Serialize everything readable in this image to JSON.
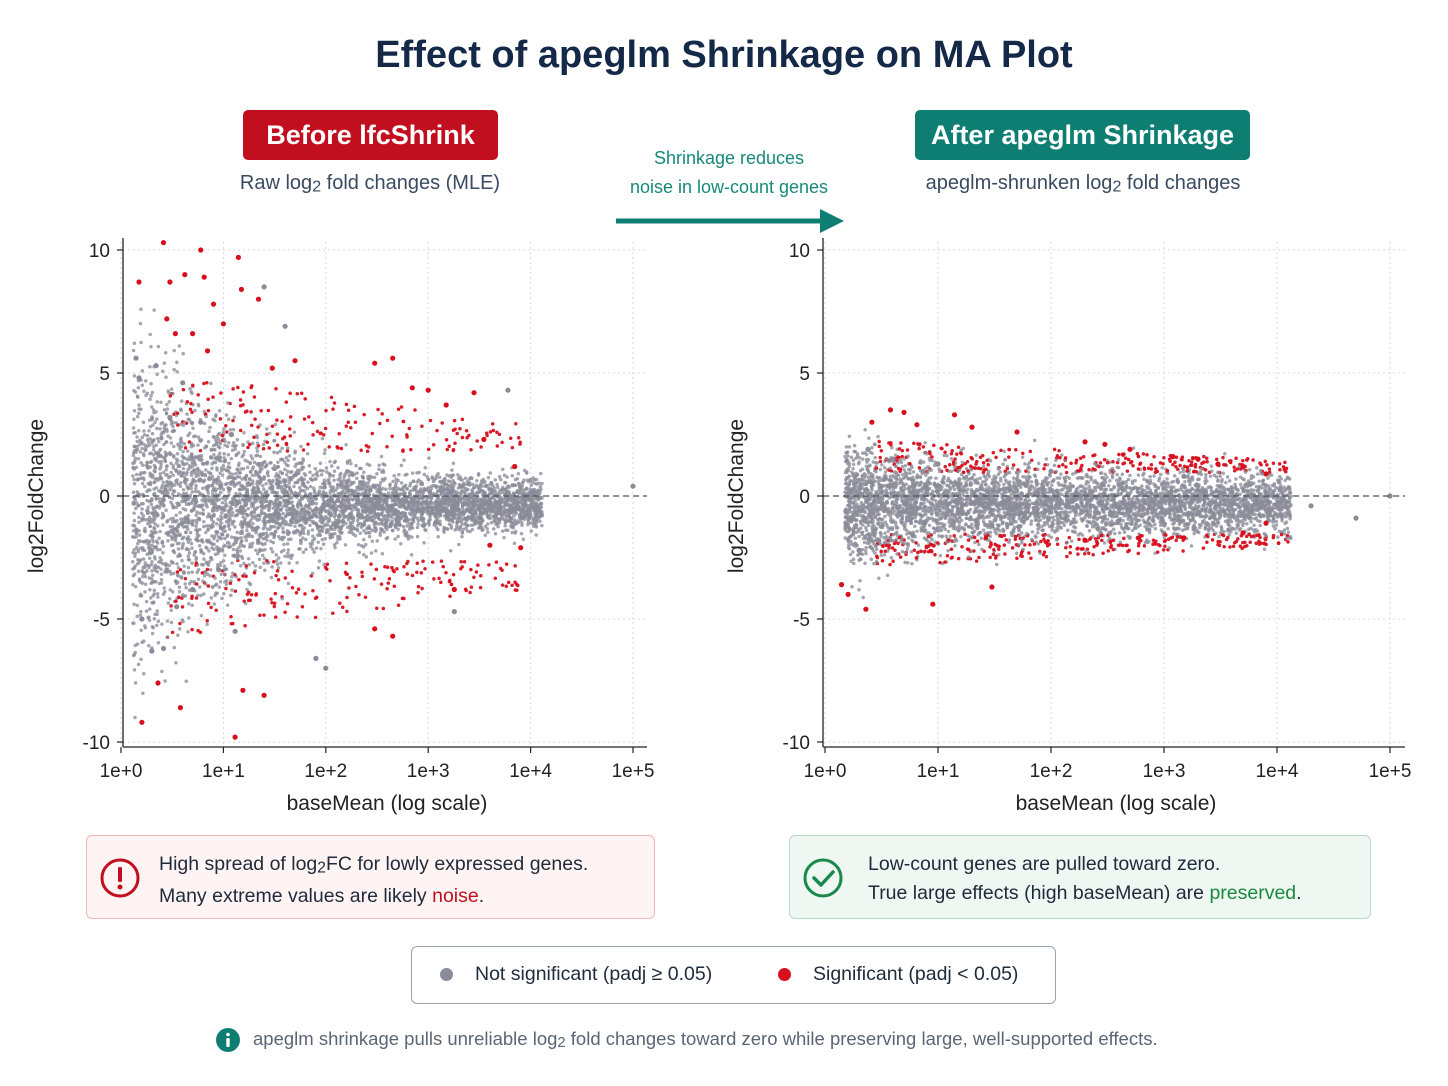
{
  "title": "Effect of apeglm Shrinkage on MA Plot",
  "left_panel": {
    "badge": "Before lfcShrink",
    "subtitle_pre": "Raw log",
    "subtitle_sub": "2",
    "subtitle_post": " fold changes (MLE)"
  },
  "right_panel": {
    "badge": "After apeglm Shrinkage",
    "subtitle_pre": "apeglm-shrunken log",
    "subtitle_sub": "2",
    "subtitle_post": " fold changes"
  },
  "arrow_annotation": {
    "line1": "Shrinkage reduces",
    "line2": "noise in low-count genes"
  },
  "callouts": {
    "left": {
      "line1_pre": "High spread of log",
      "line1_sub": "2",
      "line1_post": "FC for lowly expressed genes.",
      "line2_pre": "Many extreme values are likely ",
      "line2_highlight": "noise",
      "line2_post": "."
    },
    "right": {
      "line1": "Low-count genes are pulled toward zero.",
      "line2_pre": "True large effects (high baseMean) are ",
      "line2_highlight": "preserved",
      "line2_post": "."
    }
  },
  "legend": {
    "not_significant": "Not significant (padj ≥ 0.05)",
    "significant": "Significant (padj < 0.05)"
  },
  "footnote": {
    "pre": "apeglm shrinkage pulls unreliable log",
    "sub": "2",
    "post": " fold changes toward zero while preserving large, well-supported effects."
  },
  "colors": {
    "not_significant": "#8a8c99",
    "significant": "#d8101e",
    "red_badge": "#c20f1f",
    "teal_badge": "#0f7e72",
    "arrow": "#0f7e72"
  },
  "chart_data": [
    {
      "type": "scatter",
      "title": "Before lfcShrink",
      "xlabel": "baseMean (log scale)",
      "ylabel": "log2FoldChange",
      "x_scale": "log",
      "xlim": [
        1,
        100000
      ],
      "ylim": [
        -10,
        10
      ],
      "x_ticks": [
        "1e+0",
        "1e+1",
        "1e+2",
        "1e+3",
        "1e+4",
        "1e+5"
      ],
      "y_ticks": [
        "-10",
        "-5",
        "0",
        "5",
        "10"
      ],
      "grid": true,
      "reference_line_y": 0,
      "series": [
        {
          "name": "Not significant (padj ≥ 0.05)",
          "points": [
            [
              1.4,
              5.6
            ],
            [
              1.5,
              4.8
            ],
            [
              1.6,
              -5.0
            ],
            [
              2.0,
              -6.3
            ],
            [
              2.2,
              5.3
            ],
            [
              2.6,
              -6.2
            ],
            [
              3.0,
              3.2
            ],
            [
              3.5,
              -4.5
            ],
            [
              4.0,
              4.6
            ],
            [
              5.0,
              -3.8
            ],
            [
              6.0,
              3.0
            ],
            [
              9.0,
              -3.0
            ],
            [
              12.0,
              2.5
            ],
            [
              13.0,
              -5.5
            ],
            [
              25.0,
              8.5
            ],
            [
              40.0,
              6.9
            ],
            [
              80.0,
              -6.6
            ],
            [
              100.0,
              -7.0
            ],
            [
              1800.0,
              -4.7
            ],
            [
              6000.0,
              4.3
            ],
            [
              100000.0,
              0.4
            ]
          ]
        },
        {
          "name": "Significant (padj < 0.05)",
          "points": [
            [
              1.5,
              8.7
            ],
            [
              1.6,
              -9.2
            ],
            [
              2.3,
              -7.6
            ],
            [
              2.6,
              10.3
            ],
            [
              2.8,
              7.2
            ],
            [
              3.0,
              8.7
            ],
            [
              3.4,
              6.6
            ],
            [
              3.8,
              -8.6
            ],
            [
              4.2,
              9.0
            ],
            [
              5.0,
              6.6
            ],
            [
              6.0,
              10.0
            ],
            [
              6.5,
              8.9
            ],
            [
              7.0,
              5.9
            ],
            [
              8.0,
              7.8
            ],
            [
              10.0,
              7.0
            ],
            [
              13.0,
              -9.8
            ],
            [
              14.0,
              9.7
            ],
            [
              15.0,
              8.4
            ],
            [
              15.5,
              -7.9
            ],
            [
              22.0,
              8.0
            ],
            [
              25.0,
              -8.1
            ],
            [
              30.0,
              5.2
            ],
            [
              50.0,
              5.5
            ],
            [
              300.0,
              5.4
            ],
            [
              450.0,
              5.6
            ],
            [
              700.0,
              4.4
            ],
            [
              1000.0,
              4.3
            ],
            [
              1500.0,
              3.7
            ],
            [
              300.0,
              -5.4
            ],
            [
              450.0,
              -5.7
            ],
            [
              1800.0,
              -3.8
            ],
            [
              2800.0,
              4.2
            ],
            [
              3500.0,
              2.3
            ],
            [
              4000.0,
              -2.0
            ],
            [
              7000.0,
              1.2
            ],
            [
              8000.0,
              -2.1
            ]
          ]
        }
      ]
    },
    {
      "type": "scatter",
      "title": "After apeglm Shrinkage",
      "xlabel": "baseMean (log scale)",
      "ylabel": "log2FoldChange",
      "x_scale": "log",
      "xlim": [
        1,
        100000
      ],
      "ylim": [
        -10,
        10
      ],
      "x_ticks": [
        "1e+0",
        "1e+1",
        "1e+2",
        "1e+3",
        "1e+4",
        "1e+5"
      ],
      "y_ticks": [
        "-10",
        "-5",
        "0",
        "5",
        "10"
      ],
      "grid": true,
      "reference_line_y": 0,
      "series": [
        {
          "name": "Not significant (padj ≥ 0.05)",
          "points": [
            [
              2.0,
              -2.2
            ],
            [
              2.4,
              1.9
            ],
            [
              3.0,
              -1.8
            ],
            [
              4.0,
              1.5
            ],
            [
              6.0,
              -1.6
            ],
            [
              10.0,
              1.3
            ],
            [
              30.0,
              -1.2
            ],
            [
              100.0,
              1.0
            ],
            [
              400.0,
              -1.0
            ],
            [
              1500.0,
              0.8
            ],
            [
              6000.0,
              -0.6
            ],
            [
              20000.0,
              -0.4
            ],
            [
              50000.0,
              -0.9
            ],
            [
              100000.0,
              0.0
            ]
          ]
        },
        {
          "name": "Significant (padj < 0.05)",
          "points": [
            [
              1.4,
              -3.6
            ],
            [
              1.6,
              -4.0
            ],
            [
              2.3,
              -4.6
            ],
            [
              2.6,
              3.0
            ],
            [
              3.8,
              3.5
            ],
            [
              5.0,
              3.4
            ],
            [
              6.5,
              2.9
            ],
            [
              9.0,
              -4.4
            ],
            [
              14.0,
              3.3
            ],
            [
              20.0,
              2.8
            ],
            [
              30.0,
              -3.7
            ],
            [
              50.0,
              2.6
            ],
            [
              200.0,
              2.2
            ],
            [
              300.0,
              2.1
            ],
            [
              500.0,
              1.9
            ],
            [
              1200.0,
              1.6
            ],
            [
              2000.0,
              1.5
            ],
            [
              3000.0,
              1.3
            ],
            [
              5000.0,
              1.2
            ],
            [
              8000.0,
              0.9
            ],
            [
              200.0,
              -1.8
            ],
            [
              1500.0,
              -1.7
            ],
            [
              5000.0,
              -1.5
            ],
            [
              8000.0,
              -1.1
            ]
          ]
        }
      ]
    }
  ]
}
